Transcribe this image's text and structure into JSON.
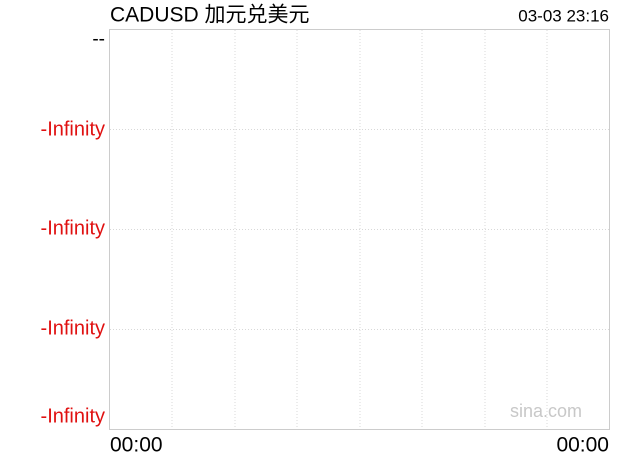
{
  "title": "CADUSD 加元兑美元",
  "time": "03-03 23:16",
  "y_labels": [
    "--",
    "-Infinity",
    "-Infinity",
    "-Infinity",
    "-Infinity"
  ],
  "x_labels": [
    "00:00",
    "00:00"
  ],
  "watermark": "sina.com"
}
